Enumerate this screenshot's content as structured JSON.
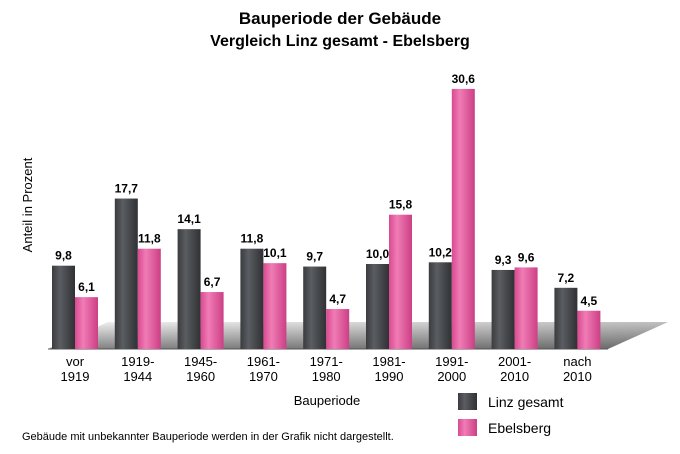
{
  "chart_data": {
    "type": "bar",
    "title": "Bauperiode der Gebäude",
    "subtitle": "Vergleich Linz gesamt - Ebelsberg",
    "xlabel": "Bauperiode",
    "ylabel": "Anteil in Prozent",
    "categories": [
      [
        "vor",
        "1919"
      ],
      [
        "1919-",
        "1944"
      ],
      [
        "1945-",
        "1960"
      ],
      [
        "1961-",
        "1970"
      ],
      [
        "1971-",
        "1980"
      ],
      [
        "1981-",
        "1990"
      ],
      [
        "1991-",
        "2000"
      ],
      [
        "2001-",
        "2010"
      ],
      [
        "nach",
        "2010"
      ]
    ],
    "series": [
      {
        "name": "Linz gesamt",
        "color": "#4a4d50",
        "values": [
          9.8,
          17.7,
          14.1,
          11.8,
          9.7,
          10.0,
          10.2,
          9.3,
          7.2
        ],
        "labels": [
          "9,8",
          "17,7",
          "14,1",
          "11,8",
          "9,7",
          "10,0",
          "10,2",
          "9,3",
          "7,2"
        ]
      },
      {
        "name": "Ebelsberg",
        "color": "#e0559a",
        "values": [
          6.1,
          11.8,
          6.7,
          10.1,
          4.7,
          15.8,
          30.6,
          9.6,
          4.5
        ],
        "labels": [
          "6,1",
          "11,8",
          "6,7",
          "10,1",
          "4,7",
          "15,8",
          "30,6",
          "9,6",
          "4,5"
        ]
      }
    ],
    "ylim": [
      0,
      31
    ],
    "grid": false,
    "legend_position": "bottom-right"
  },
  "footnote": "Gebäude mit unbekannter Bauperiode werden in der Grafik nicht dargestellt."
}
